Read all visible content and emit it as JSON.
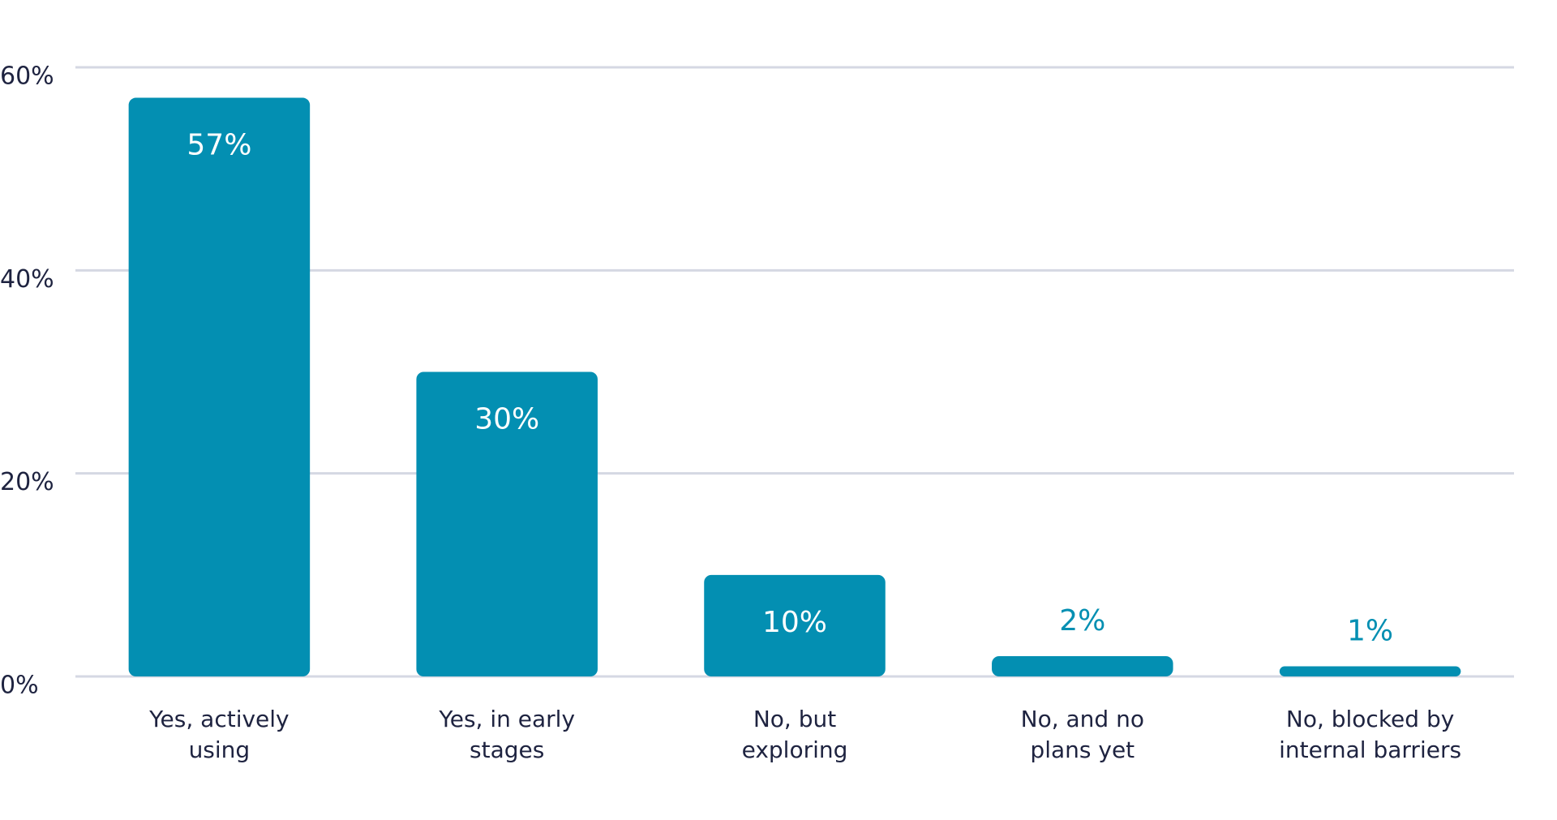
{
  "chart_data": {
    "type": "bar",
    "categories": [
      "Yes, actively\nusing",
      "Yes, in early\nstages",
      "No, but\nexploring",
      "No, and no\nplans yet",
      "No, blocked by\ninternal barriers"
    ],
    "values": [
      57,
      30,
      10,
      2,
      1
    ],
    "value_labels": [
      "57%",
      "30%",
      "10%",
      "2%",
      "1%"
    ],
    "color": "#038fb2",
    "ylim": [
      0,
      60
    ],
    "yticks": [
      {
        "value": 0,
        "label": "0%"
      },
      {
        "value": 20,
        "label": "20%"
      },
      {
        "value": 40,
        "label": "40%"
      },
      {
        "value": 60,
        "label": "60%"
      }
    ],
    "grid": true
  }
}
